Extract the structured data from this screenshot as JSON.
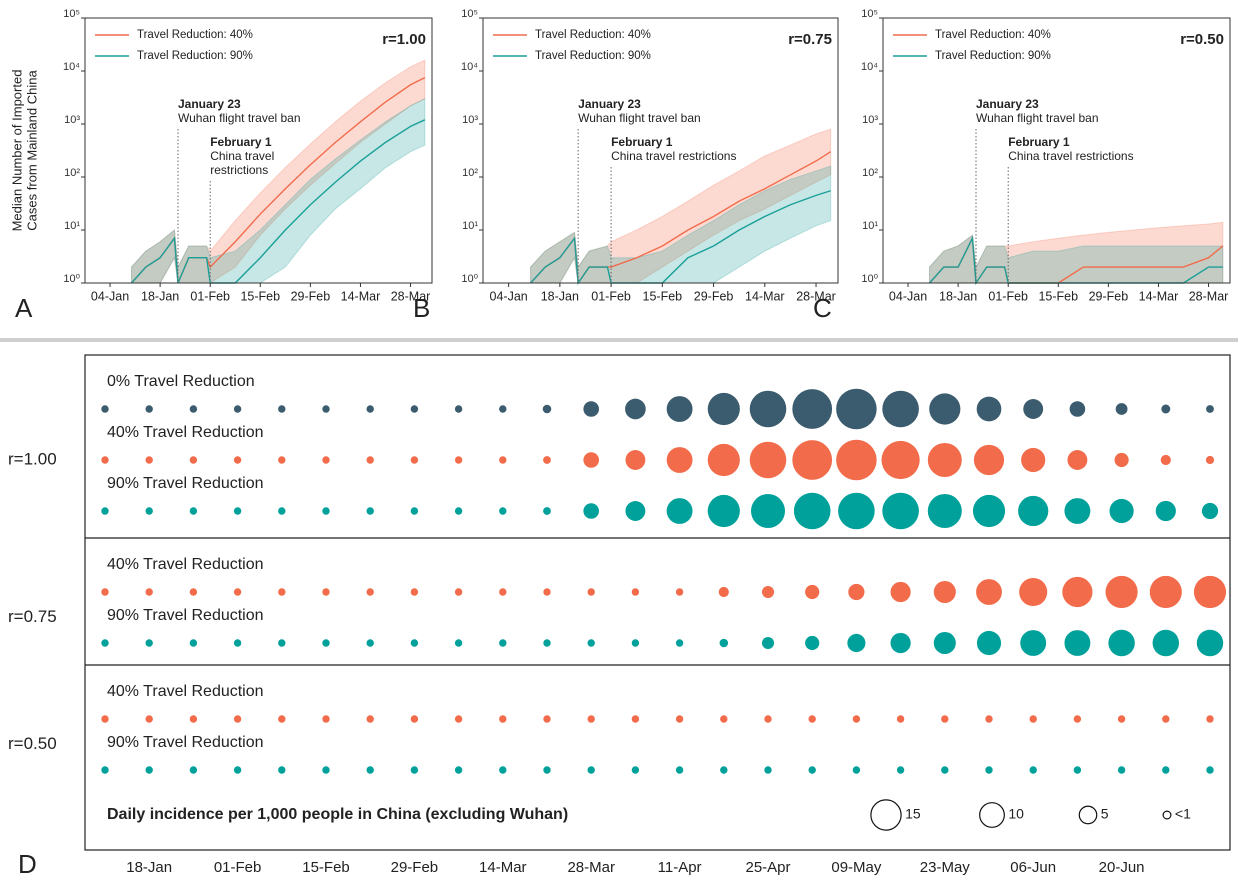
{
  "chart_data": [
    {
      "type": "line",
      "label": "A",
      "annotation": "r=1.00",
      "legend": "upper left",
      "log_y": true,
      "y_label": [
        "Median Number of Imported",
        "Cases from Mainland China"
      ],
      "x": [
        "10-Jan",
        "14-Jan",
        "18-Jan",
        "22-Jan",
        "23-Jan",
        "26-Jan",
        "31-Jan",
        "01-Feb",
        "08-Feb",
        "15-Feb",
        "22-Feb",
        "29-Feb",
        "07-Mar",
        "14-Mar",
        "21-Mar",
        "28-Mar",
        "01-Apr"
      ],
      "xlim": [
        "28-Dec",
        "03-Apr"
      ],
      "xticks": [
        "04-Jan",
        "18-Jan",
        "01-Feb",
        "15-Feb",
        "29-Feb",
        "14-Mar",
        "28-Mar"
      ],
      "ylim": [
        1,
        100000
      ],
      "yticks": [
        {
          "value": 1,
          "label": "10⁰"
        },
        {
          "value": 10,
          "label": "10¹"
        },
        {
          "value": 100,
          "label": "10²"
        },
        {
          "value": 1000,
          "label": "10³"
        },
        {
          "value": 10000,
          "label": "10⁴"
        },
        {
          "value": 100000,
          "label": "10⁵"
        }
      ],
      "events": [
        {
          "x": "23-Jan",
          "title": "January 23",
          "text": [
            "Wuhan flight travel ban"
          ]
        },
        {
          "x": "01-Feb",
          "title": "February 1",
          "text": [
            "China travel",
            "restrictions"
          ]
        }
      ],
      "series": [
        {
          "name": "Travel Reduction: 40%",
          "color": "#f26c4b",
          "values": [
            1,
            2,
            3,
            7,
            1,
            3,
            3,
            2,
            6,
            20,
            60,
            170,
            450,
            1100,
            2600,
            5500,
            7500
          ],
          "lower": [
            1,
            1,
            1,
            3,
            1,
            1,
            1,
            1,
            2,
            8,
            25,
            70,
            180,
            450,
            1000,
            2200,
            3000
          ],
          "upper": [
            2,
            4,
            6,
            10,
            2,
            5,
            5,
            4,
            15,
            50,
            150,
            420,
            1100,
            2700,
            6000,
            12000,
            16000
          ]
        },
        {
          "name": "Travel Reduction: 90%",
          "color": "#1a9f99",
          "values": [
            1,
            2,
            3,
            7,
            1,
            3,
            3,
            1,
            1,
            3,
            10,
            30,
            80,
            200,
            450,
            900,
            1200
          ],
          "lower": [
            1,
            1,
            1,
            3,
            1,
            1,
            1,
            1,
            1,
            1,
            2,
            8,
            25,
            60,
            150,
            300,
            400
          ],
          "upper": [
            2,
            4,
            6,
            10,
            2,
            5,
            5,
            3,
            4,
            10,
            30,
            90,
            220,
            500,
            1100,
            2200,
            3000
          ]
        }
      ]
    },
    {
      "type": "line",
      "label": "B",
      "annotation": "r=0.75",
      "legend": "upper left",
      "log_y": true,
      "x": [
        "10-Jan",
        "14-Jan",
        "18-Jan",
        "22-Jan",
        "23-Jan",
        "26-Jan",
        "31-Jan",
        "01-Feb",
        "08-Feb",
        "15-Feb",
        "22-Feb",
        "29-Feb",
        "07-Mar",
        "14-Mar",
        "21-Mar",
        "28-Mar",
        "01-Apr"
      ],
      "xlim": [
        "28-Dec",
        "03-Apr"
      ],
      "xticks": [
        "04-Jan",
        "18-Jan",
        "01-Feb",
        "15-Feb",
        "29-Feb",
        "14-Mar",
        "28-Mar"
      ],
      "ylim": [
        1,
        100000
      ],
      "yticks": [
        {
          "value": 1,
          "label": "10⁰"
        },
        {
          "value": 10,
          "label": "10¹"
        },
        {
          "value": 100,
          "label": "10²"
        },
        {
          "value": 1000,
          "label": "10³"
        },
        {
          "value": 10000,
          "label": "10⁴"
        },
        {
          "value": 100000,
          "label": "10⁵"
        }
      ],
      "events": [
        {
          "x": "23-Jan",
          "title": "January 23",
          "text": [
            "Wuhan flight travel ban"
          ]
        },
        {
          "x": "01-Feb",
          "title": "February 1",
          "text": [
            "China travel restrictions"
          ]
        }
      ],
      "series": [
        {
          "name": "Travel Reduction: 40%",
          "color": "#f26c4b",
          "values": [
            1,
            2,
            3,
            7,
            1,
            2,
            2,
            2,
            3,
            5,
            10,
            18,
            35,
            60,
            110,
            200,
            300
          ],
          "lower": [
            1,
            1,
            1,
            3,
            1,
            1,
            1,
            1,
            1,
            2,
            4,
            8,
            15,
            25,
            45,
            80,
            110
          ],
          "upper": [
            2,
            4,
            6,
            9,
            2,
            4,
            5,
            6,
            10,
            18,
            35,
            70,
            130,
            250,
            400,
            650,
            800
          ]
        },
        {
          "name": "Travel Reduction: 90%",
          "color": "#1a9f99",
          "values": [
            1,
            2,
            3,
            7,
            1,
            2,
            2,
            1,
            1,
            1,
            3,
            5,
            10,
            18,
            30,
            45,
            55
          ],
          "lower": [
            1,
            1,
            1,
            3,
            1,
            1,
            1,
            1,
            1,
            1,
            1,
            1,
            2,
            4,
            7,
            12,
            15
          ],
          "upper": [
            2,
            4,
            6,
            9,
            2,
            4,
            5,
            3,
            3,
            4,
            8,
            15,
            30,
            55,
            90,
            130,
            160
          ]
        }
      ]
    },
    {
      "type": "line",
      "label": "C",
      "annotation": "r=0.50",
      "legend": "upper left",
      "log_y": true,
      "x": [
        "10-Jan",
        "14-Jan",
        "18-Jan",
        "22-Jan",
        "23-Jan",
        "26-Jan",
        "31-Jan",
        "01-Feb",
        "08-Feb",
        "15-Feb",
        "22-Feb",
        "29-Feb",
        "07-Mar",
        "14-Mar",
        "21-Mar",
        "28-Mar",
        "01-Apr"
      ],
      "xlim": [
        "28-Dec",
        "03-Apr"
      ],
      "xticks": [
        "04-Jan",
        "18-Jan",
        "01-Feb",
        "15-Feb",
        "29-Feb",
        "14-Mar",
        "28-Mar"
      ],
      "ylim": [
        1,
        100000
      ],
      "yticks": [
        {
          "value": 1,
          "label": "10⁰"
        },
        {
          "value": 10,
          "label": "10¹"
        },
        {
          "value": 100,
          "label": "10²"
        },
        {
          "value": 1000,
          "label": "10³"
        },
        {
          "value": 10000,
          "label": "10⁴"
        },
        {
          "value": 100000,
          "label": "10⁵"
        }
      ],
      "events": [
        {
          "x": "23-Jan",
          "title": "January 23",
          "text": [
            "Wuhan flight travel ban"
          ]
        },
        {
          "x": "01-Feb",
          "title": "February 1",
          "text": [
            "China travel restrictions"
          ]
        }
      ],
      "series": [
        {
          "name": "Travel Reduction: 40%",
          "color": "#f26c4b",
          "values": [
            1,
            2,
            2,
            7,
            1,
            2,
            2,
            1,
            1,
            1,
            2,
            2,
            2,
            2,
            2,
            3,
            5
          ],
          "lower": [
            1,
            1,
            1,
            1,
            1,
            1,
            1,
            1,
            1,
            1,
            1,
            1,
            1,
            1,
            1,
            1,
            1
          ],
          "upper": [
            2,
            4,
            5,
            8,
            2,
            5,
            5,
            5,
            6,
            7,
            8,
            9,
            10,
            11,
            12,
            13,
            14
          ]
        },
        {
          "name": "Travel Reduction: 90%",
          "color": "#1a9f99",
          "values": [
            1,
            2,
            2,
            7,
            1,
            2,
            2,
            1,
            1,
            1,
            1,
            1,
            1,
            1,
            1,
            2,
            2
          ],
          "lower": [
            1,
            1,
            1,
            1,
            1,
            1,
            1,
            1,
            1,
            1,
            1,
            1,
            1,
            1,
            1,
            1,
            1
          ],
          "upper": [
            2,
            4,
            5,
            8,
            2,
            5,
            5,
            3,
            4,
            4,
            5,
            5,
            5,
            5,
            5,
            5,
            5
          ]
        }
      ]
    },
    {
      "type": "bubble",
      "label": "D",
      "categories": [
        null,
        "18-Jan",
        null,
        "01-Feb",
        null,
        "15-Feb",
        null,
        "29-Feb",
        null,
        "14-Mar",
        null,
        "28-Mar",
        null,
        "11-Apr",
        null,
        "25-Apr",
        null,
        "09-May",
        null,
        "23-May",
        null,
        "06-Jun",
        null,
        "20-Jun",
        null,
        null
      ],
      "groups": [
        {
          "name": "r=1.00",
          "series": [
            {
              "name": "0% Travel Reduction",
              "color": "#3b5b6e",
              "values": [
                0.9,
                0.9,
                0.9,
                0.9,
                0.9,
                0.9,
                0.9,
                0.9,
                0.9,
                0.9,
                1.2,
                4,
                7,
                11,
                17,
                22,
                26,
                27,
                22,
                16,
                10,
                6.5,
                4,
                2.3,
                1.3,
                1
              ]
            },
            {
              "name": "40% Travel Reduction",
              "color": "#f26c4b",
              "values": [
                0.9,
                0.9,
                0.9,
                0.9,
                0.9,
                0.9,
                0.9,
                0.9,
                0.9,
                0.9,
                1,
                4,
                6.5,
                11,
                17,
                22,
                26,
                27,
                24,
                19,
                15,
                9.6,
                6.5,
                3.3,
                1.7,
                1.1
              ]
            },
            {
              "name": "90% Travel Reduction",
              "color": "#00a19a",
              "values": [
                0.9,
                0.9,
                0.9,
                0.9,
                0.9,
                0.9,
                0.9,
                0.9,
                0.9,
                0.9,
                1,
                4,
                6.5,
                11,
                17,
                19,
                22,
                22,
                22,
                19,
                17,
                15,
                11,
                9.6,
                6.7,
                4.3
              ]
            }
          ]
        },
        {
          "name": "r=0.75",
          "series": [
            {
              "name": "40% Travel Reduction",
              "color": "#f26c4b",
              "values": [
                0.9,
                0.9,
                0.9,
                0.9,
                0.9,
                0.9,
                0.9,
                0.9,
                0.9,
                0.9,
                0.9,
                0.9,
                0.9,
                0.9,
                1.7,
                2.4,
                3.3,
                4.3,
                6.7,
                8,
                11,
                13,
                15,
                17,
                17,
                17
              ]
            },
            {
              "name": "90% Travel Reduction",
              "color": "#00a19a",
              "values": [
                0.9,
                0.9,
                0.9,
                0.9,
                0.9,
                0.9,
                0.9,
                0.9,
                0.9,
                0.9,
                0.9,
                0.9,
                0.9,
                0.9,
                1.2,
                2.4,
                3.3,
                5.4,
                6.7,
                8,
                9.6,
                11,
                11,
                11.5,
                11.5,
                11.5
              ]
            }
          ]
        },
        {
          "name": "r=0.50",
          "series": [
            {
              "name": "40% Travel Reduction",
              "color": "#f26c4b",
              "values": [
                0.9,
                0.9,
                0.9,
                0.9,
                0.9,
                0.9,
                0.9,
                0.9,
                0.9,
                0.9,
                0.9,
                0.9,
                0.9,
                0.9,
                0.9,
                0.9,
                0.9,
                0.9,
                0.9,
                0.9,
                0.9,
                0.9,
                0.9,
                0.9,
                0.9,
                0.9
              ]
            },
            {
              "name": "90% Travel Reduction",
              "color": "#00a19a",
              "values": [
                0.9,
                0.9,
                0.9,
                0.9,
                0.9,
                0.9,
                0.9,
                0.9,
                0.9,
                0.9,
                0.9,
                0.9,
                0.9,
                0.9,
                0.9,
                0.9,
                0.9,
                0.9,
                0.9,
                0.9,
                0.9,
                0.9,
                0.9,
                0.9,
                0.9,
                0.9
              ]
            }
          ]
        }
      ],
      "size_title": "Daily incidence per 1,000 people in China (excluding Wuhan)",
      "size_legend": [
        15,
        10,
        5,
        {
          "value": 1,
          "label": "<1"
        }
      ]
    }
  ]
}
